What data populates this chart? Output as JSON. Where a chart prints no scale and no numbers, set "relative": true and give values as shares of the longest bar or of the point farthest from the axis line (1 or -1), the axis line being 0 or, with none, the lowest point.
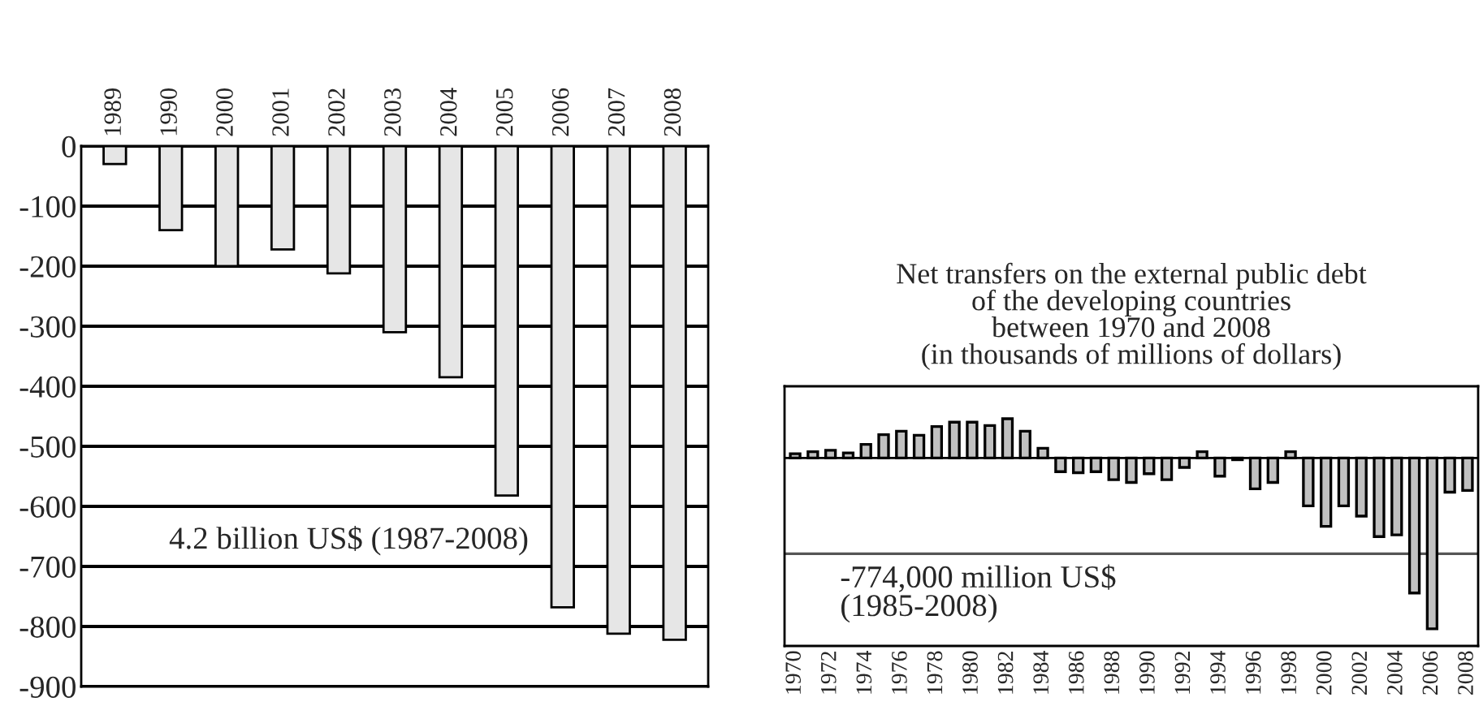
{
  "chart_data": [
    {
      "type": "bar",
      "categories": [
        "1989",
        "1990",
        "2000",
        "2001",
        "2002",
        "2003",
        "2004",
        "2005",
        "2006",
        "2007",
        "2008"
      ],
      "values": [
        -30,
        -140,
        -200,
        -172,
        -212,
        -310,
        -385,
        -582,
        -768,
        -812,
        -822
      ],
      "color": "#e6e6e6",
      "ylim": [
        -900,
        0
      ],
      "yticks": [
        0,
        -100,
        -200,
        -300,
        -400,
        -500,
        -600,
        -700,
        -800,
        -900
      ],
      "grid": "y",
      "annotations": [
        "4.2 billion US$ (1987-2008)"
      ]
    },
    {
      "type": "bar",
      "title": "Net transfers on the external public debt\nof the developing countries\nbetween 1970 and 2008\n(in thousands of millions of dollars)",
      "relative": true,
      "categories": [
        "1970",
        null,
        "1972",
        null,
        "1974",
        null,
        "1976",
        null,
        "1978",
        null,
        "1980",
        null,
        "1982",
        null,
        "1984",
        null,
        "1986",
        null,
        "1988",
        null,
        "1990",
        null,
        "1992",
        null,
        "1994",
        null,
        "1996",
        null,
        "1998",
        null,
        "2000",
        null,
        "2002",
        null,
        "2004",
        null,
        "2006",
        null,
        "2008"
      ],
      "values": [
        0.025,
        0.037,
        0.045,
        0.03,
        0.08,
        0.137,
        0.157,
        0.133,
        0.184,
        0.21,
        0.21,
        0.19,
        0.23,
        0.157,
        0.057,
        -0.08,
        -0.086,
        -0.08,
        -0.127,
        -0.143,
        -0.092,
        -0.127,
        -0.055,
        0.037,
        -0.106,
        -0.01,
        -0.18,
        -0.143,
        0.037,
        -0.28,
        -0.4,
        -0.28,
        -0.34,
        -0.46,
        -0.45,
        -0.79,
        -1,
        -0.2,
        -0.19
      ],
      "color": "#c0c0c0",
      "ref_lines": [
        {
          "axis": "y",
          "value": -0.56,
          "color": "#555555"
        }
      ],
      "annotations": [
        "-774,000 million US$\n(1985-2008)"
      ]
    }
  ]
}
